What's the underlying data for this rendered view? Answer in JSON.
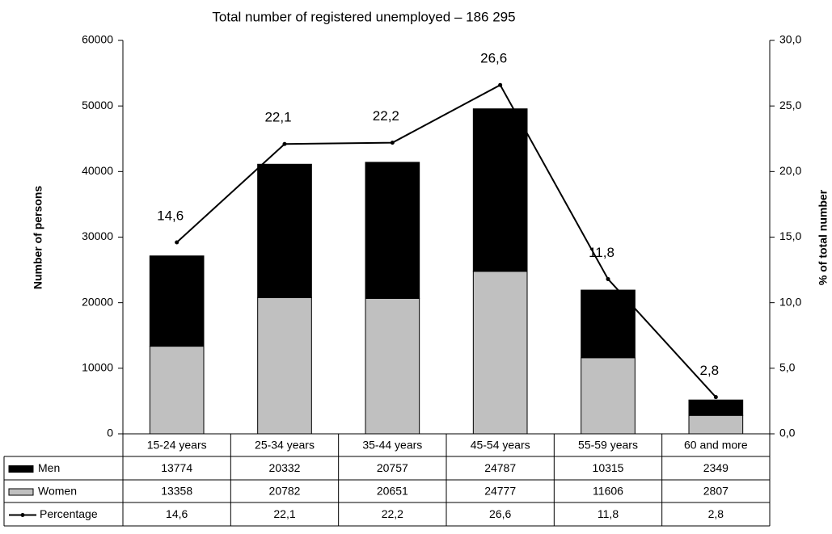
{
  "chart_data": {
    "type": "bar",
    "title": "Total number of registered unemployed – 186 295",
    "ylabel": "Number of persons",
    "y2label": "% of total number",
    "categories": [
      "15-24 years",
      "25-34 years",
      "35-44 years",
      "45-54 years",
      "55-59 years",
      "60 and more"
    ],
    "series": [
      {
        "name": "Men",
        "type": "bar",
        "color": "#000000",
        "values": [
          13774,
          20332,
          20757,
          24787,
          10315,
          2349
        ]
      },
      {
        "name": "Women",
        "type": "bar",
        "color": "#c0c0c0",
        "values": [
          13358,
          20782,
          20651,
          24777,
          11606,
          2807
        ]
      },
      {
        "name": "Percentage",
        "type": "line",
        "axis": "y2",
        "color": "#000000",
        "values": [
          14.6,
          22.1,
          22.2,
          26.6,
          11.8,
          2.8
        ],
        "value_labels": [
          "14,6",
          "22,1",
          "22,2",
          "26,6",
          "11,8",
          "2,8"
        ]
      }
    ],
    "stacked": true,
    "ylim": [
      0,
      60000
    ],
    "yticks": [
      0,
      10000,
      20000,
      30000,
      40000,
      50000,
      60000
    ],
    "y2lim": [
      0,
      30
    ],
    "y2ticks": [
      {
        "value": 0,
        "label": "0,0"
      },
      {
        "value": 5,
        "label": "5,0"
      },
      {
        "value": 10,
        "label": "10,0"
      },
      {
        "value": 15,
        "label": "15,0"
      },
      {
        "value": 20,
        "label": "20,0"
      },
      {
        "value": 25,
        "label": "25,0"
      },
      {
        "value": 30,
        "label": "30,0"
      }
    ],
    "grid": false,
    "data_table": true
  }
}
